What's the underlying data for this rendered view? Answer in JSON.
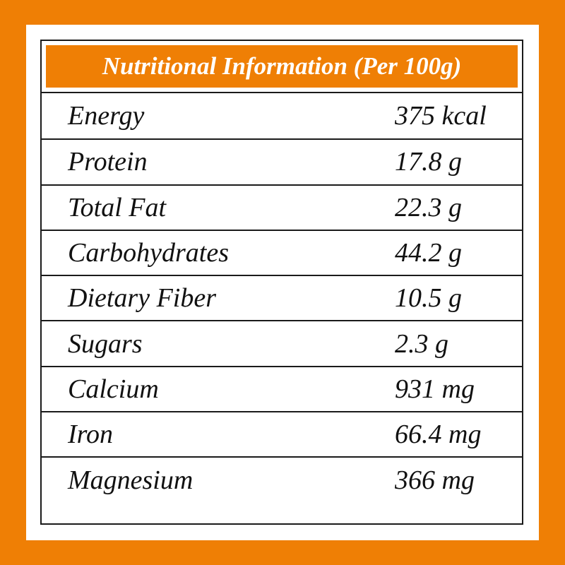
{
  "panel": {
    "title": "Nutritional Information (Per 100g)"
  },
  "nutrients": [
    {
      "label": "Energy",
      "value": "375 kcal"
    },
    {
      "label": "Protein",
      "value": "17.8 g"
    },
    {
      "label": "Total Fat",
      "value": "22.3 g"
    },
    {
      "label": "Carbohydrates",
      "value": "44.2 g"
    },
    {
      "label": "Dietary Fiber",
      "value": "10.5 g"
    },
    {
      "label": "Sugars",
      "value": "2.3 g"
    },
    {
      "label": "Calcium",
      "value": "931 mg"
    },
    {
      "label": "Iron",
      "value": "66.4 mg"
    },
    {
      "label": "Magnesium",
      "value": "366 mg"
    }
  ],
  "colors": {
    "accent": "#EF7F05",
    "border": "#1a1a1a",
    "text": "#111111"
  }
}
